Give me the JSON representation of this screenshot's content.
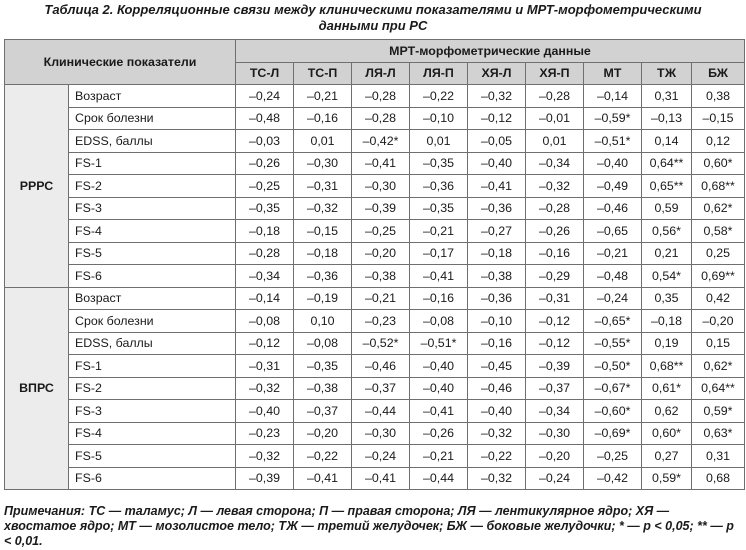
{
  "title_line1": "Таблица 2. Корреляционные связи между клиническими показателями и МРТ-морфометрическими",
  "title_line2": "данными при РС",
  "header": {
    "clinical": "Клинические показатели",
    "mri": "МРТ-морфометрические данные",
    "columns": [
      "ТС-Л",
      "ТС-П",
      "ЛЯ-Л",
      "ЛЯ-П",
      "ХЯ-Л",
      "ХЯ-П",
      "МТ",
      "ТЖ",
      "БЖ"
    ]
  },
  "groups": [
    {
      "name": "РРРС",
      "rows": [
        {
          "label": "Возраст",
          "values": [
            "–0,24",
            "–0,21",
            "–0,28",
            "–0,22",
            "–0,32",
            "–0,28",
            "–0,14",
            "0,31",
            "0,38"
          ]
        },
        {
          "label": "Срок болезни",
          "values": [
            "–0,48",
            "–0,16",
            "–0,28",
            "–0,10",
            "–0,12",
            "–0,01",
            "–0,59*",
            "–0,13",
            "–0,15"
          ]
        },
        {
          "label": "EDSS, баллы",
          "values": [
            "–0,03",
            "0,01",
            "–0,42*",
            "0,01",
            "–0,05",
            "0,01",
            "–0,51*",
            "0,14",
            "0,12"
          ]
        },
        {
          "label": "FS-1",
          "values": [
            "–0,26",
            "–0,30",
            "–0,41",
            "–0,35",
            "–0,40",
            "–0,34",
            "–0,40",
            "0,64**",
            "0,60*"
          ]
        },
        {
          "label": "FS-2",
          "values": [
            "–0,25",
            "–0,31",
            "–0,30",
            "–0,36",
            "–0,41",
            "–0,32",
            "–0,49",
            "0,65**",
            "0,68**"
          ]
        },
        {
          "label": "FS-3",
          "values": [
            "–0,35",
            "–0,32",
            "–0,39",
            "–0,35",
            "–0,36",
            "–0,28",
            "–0,46",
            "0,59",
            "0,62*"
          ]
        },
        {
          "label": "FS-4",
          "values": [
            "–0,18",
            "–0,15",
            "–0,25",
            "–0,21",
            "–0,27",
            "–0,26",
            "–0,65",
            "0,56*",
            "0,58*"
          ]
        },
        {
          "label": "FS-5",
          "values": [
            "–0,28",
            "–0,18",
            "–0,20",
            "–0,17",
            "–0,18",
            "–0,16",
            "–0,21",
            "0,21",
            "0,25"
          ]
        },
        {
          "label": "FS-6",
          "values": [
            "–0,34",
            "–0,36",
            "–0,38",
            "–0,41",
            "–0,38",
            "–0,29",
            "–0,48",
            "0,54*",
            "0,69**"
          ]
        }
      ]
    },
    {
      "name": "ВПРС",
      "rows": [
        {
          "label": "Возраст",
          "values": [
            "–0,14",
            "–0,19",
            "–0,21",
            "–0,16",
            "–0,36",
            "–0,31",
            "–0,24",
            "0,35",
            "0,42"
          ]
        },
        {
          "label": "Срок болезни",
          "values": [
            "–0,08",
            "0,10",
            "–0,23",
            "–0,08",
            "–0,10",
            "–0,12",
            "–0,65*",
            "–0,18",
            "–0,20"
          ]
        },
        {
          "label": "EDSS, баллы",
          "values": [
            "–0,12",
            "–0,08",
            "–0,52*",
            "–0,51*",
            "–0,16",
            "–0,12",
            "–0,55*",
            "0,19",
            "0,15"
          ]
        },
        {
          "label": "FS-1",
          "values": [
            "–0,31",
            "–0,35",
            "–0,46",
            "–0,40",
            "–0,45",
            "–0,39",
            "–0,50*",
            "0,68**",
            "0,62*"
          ]
        },
        {
          "label": "FS-2",
          "values": [
            "–0,32",
            "–0,38",
            "–0,37",
            "–0,40",
            "–0,46",
            "–0,37",
            "–0,67*",
            "0,61*",
            "0,64**"
          ]
        },
        {
          "label": "FS-3",
          "values": [
            "–0,40",
            "–0,37",
            "–0,44",
            "–0,41",
            "–0,40",
            "–0,34",
            "–0,60*",
            "0,62",
            "0,59*"
          ]
        },
        {
          "label": "FS-4",
          "values": [
            "–0,23",
            "–0,20",
            "–0,30",
            "–0,26",
            "–0,32",
            "–0,30",
            "–0,69*",
            "0,60*",
            "0,63*"
          ]
        },
        {
          "label": "FS-5",
          "values": [
            "–0,32",
            "–0,22",
            "–0,24",
            "–0,21",
            "–0,22",
            "–0,20",
            "–0,25",
            "0,27",
            "0,31"
          ]
        },
        {
          "label": "FS-6",
          "values": [
            "–0,39",
            "–0,41",
            "–0,41",
            "–0,44",
            "–0,32",
            "–0,24",
            "–0,42",
            "0,59*",
            "0,68"
          ]
        }
      ]
    }
  ],
  "note": "Примечания: ТС — таламус; Л — левая сторона; П — правая сторона; ЛЯ — лентикулярное ядро; ХЯ — хвостатое ядро; МТ — мозолистое тело; ТЖ — третий желудочек; БЖ — боковые желудочки; * — p < 0,05; ** — p < 0,01."
}
